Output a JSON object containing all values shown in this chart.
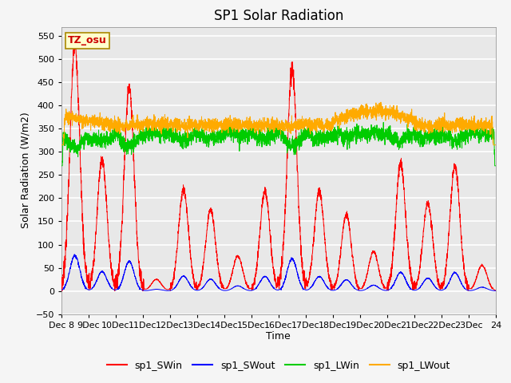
{
  "title": "SP1 Solar Radiation",
  "xlabel": "Time",
  "ylabel": "Solar Radiation (W/m2)",
  "ylim": [
    -50,
    570
  ],
  "yticks": [
    -50,
    0,
    50,
    100,
    150,
    200,
    250,
    300,
    350,
    400,
    450,
    500,
    550
  ],
  "xlim_days": [
    0,
    16
  ],
  "xtick_day_positions": [
    0,
    1,
    2,
    3,
    4,
    5,
    6,
    7,
    8,
    9,
    10,
    11,
    12,
    13,
    14,
    15,
    16
  ],
  "xtick_labels": [
    "Dec 8",
    "9Dec",
    "10Dec",
    "11Dec",
    "12Dec",
    "13Dec",
    "14Dec",
    "15Dec",
    "16Dec",
    "17Dec",
    "18Dec",
    "19Dec",
    "20Dec",
    "21Dec",
    "22Dec",
    "23Dec",
    "24"
  ],
  "colors": {
    "SWin": "#ff0000",
    "SWout": "#0000ff",
    "LWin": "#00cc00",
    "LWout": "#ffaa00"
  },
  "legend_labels": [
    "sp1_SWin",
    "sp1_SWout",
    "sp1_LWin",
    "sp1_LWout"
  ],
  "annotation_text": "TZ_osu",
  "annotation_color": "#cc0000",
  "annotation_bg": "#ffffcc",
  "annotation_border": "#aa8800",
  "plot_bg": "#e8e8e8",
  "fig_bg": "#f5f5f5",
  "grid_color": "#ffffff",
  "title_fontsize": 12,
  "axis_label_fontsize": 9,
  "tick_fontsize": 8,
  "sw_peaks": [
    530,
    285,
    440,
    25,
    220,
    175,
    75,
    215,
    480,
    215,
    165,
    85,
    275,
    190,
    270,
    55
  ],
  "lw_base": 345,
  "lw_range": 60
}
